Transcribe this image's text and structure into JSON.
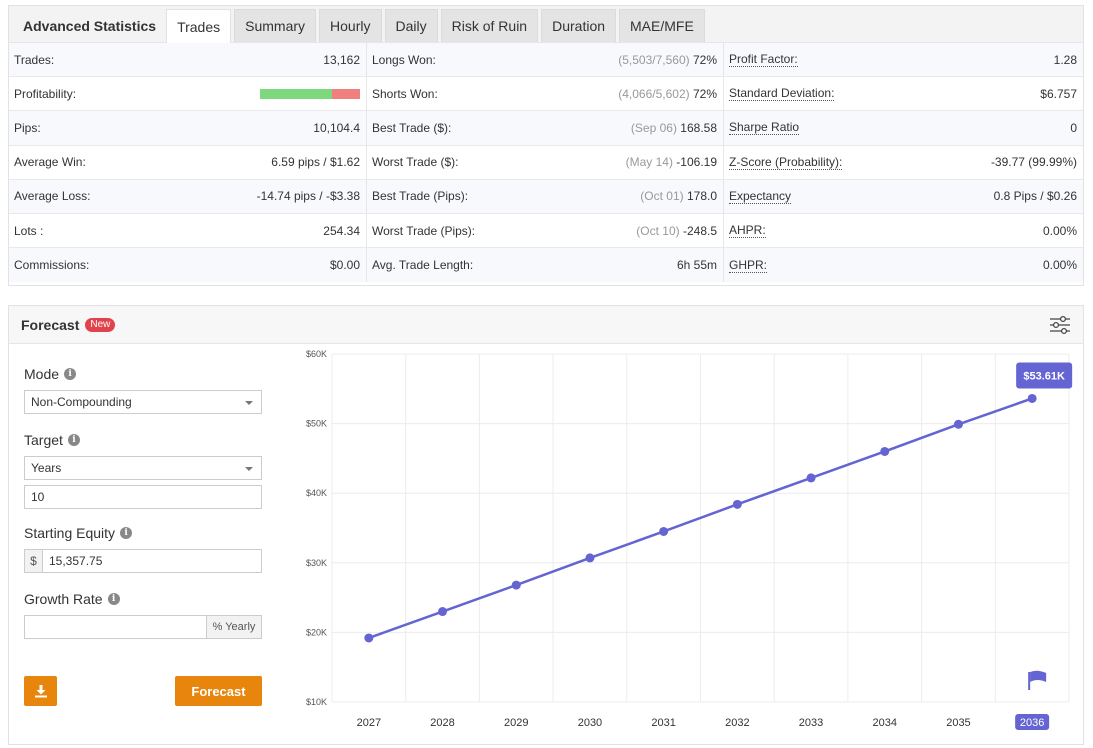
{
  "tabs": {
    "title": "Advanced Statistics",
    "items": [
      "Trades",
      "Summary",
      "Hourly",
      "Daily",
      "Risk of Ruin",
      "Duration",
      "MAE/MFE"
    ],
    "active": "Trades"
  },
  "stats": {
    "col1": [
      {
        "label": "Trades:",
        "value": "13,162"
      },
      {
        "label": "Profitability:",
        "value": "",
        "win_fraction": 0.72
      },
      {
        "label": "Pips:",
        "value": "10,104.4"
      },
      {
        "label": "Average Win:",
        "value": "6.59 pips / $1.62"
      },
      {
        "label": "Average Loss:",
        "value": "-14.74 pips / -$3.38"
      },
      {
        "label": "Lots :",
        "value": "254.34"
      },
      {
        "label": "Commissions:",
        "value": "$0.00"
      }
    ],
    "col2": [
      {
        "label": "Longs Won:",
        "muted": "(5,503/7,560)",
        "value": "72%"
      },
      {
        "label": "Shorts Won:",
        "muted": "(4,066/5,602)",
        "value": "72%"
      },
      {
        "label": "Best Trade ($):",
        "muted": "(Sep 06)",
        "value": "168.58"
      },
      {
        "label": "Worst Trade ($):",
        "muted": "(May 14)",
        "value": "-106.19"
      },
      {
        "label": "Best Trade (Pips):",
        "muted": "(Oct 01)",
        "value": "178.0"
      },
      {
        "label": "Worst Trade (Pips):",
        "muted": "(Oct 10)",
        "value": "-248.5"
      },
      {
        "label": "Avg. Trade Length:",
        "muted": "",
        "value": "6h 55m"
      }
    ],
    "col3": [
      {
        "label": "Profit Factor:",
        "value": "1.28"
      },
      {
        "label": "Standard Deviation:",
        "value": "$6.757"
      },
      {
        "label": "Sharpe Ratio",
        "value": "0"
      },
      {
        "label": "Z-Score (Probability):",
        "value": "-39.77 (99.99%)"
      },
      {
        "label": "Expectancy",
        "value": "0.8 Pips / $0.26"
      },
      {
        "label": "AHPR:",
        "value": "0.00%"
      },
      {
        "label": "GHPR:",
        "value": "0.00%"
      }
    ]
  },
  "forecast": {
    "title": "Forecast",
    "badge": "New",
    "mode_label": "Mode",
    "mode_value": "Non-Compounding",
    "target_label": "Target",
    "target_unit": "Years",
    "target_value": "10",
    "equity_label": "Starting Equity",
    "equity_prefix": "$",
    "equity_value": "15,357.75",
    "growth_label": "Growth Rate",
    "growth_value": "",
    "growth_suffix": "% Yearly",
    "forecast_button": "Forecast",
    "accent": "#e8850c",
    "line_color": "#6464d2"
  },
  "chart_data": {
    "type": "line",
    "x": [
      "2027",
      "2028",
      "2029",
      "2030",
      "2031",
      "2032",
      "2033",
      "2034",
      "2035",
      "2036"
    ],
    "series": [
      {
        "values": [
          19200,
          23000,
          26800,
          30700,
          34500,
          38400,
          42200,
          46000,
          49900,
          53610
        ]
      }
    ],
    "y_ticks": [
      "$10K",
      "$20K",
      "$30K",
      "$40K",
      "$50K",
      "$60K"
    ],
    "ylim": [
      10000,
      60000
    ],
    "end_label": "$53.61K",
    "highlight_x": "2036",
    "grid": true
  }
}
